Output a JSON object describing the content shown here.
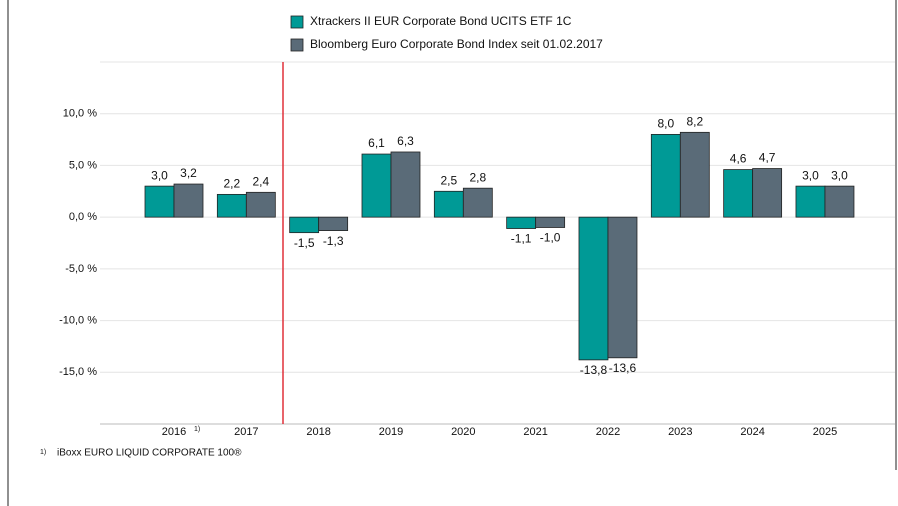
{
  "chart_data": {
    "type": "bar",
    "categories": [
      "2016",
      "2017",
      "2018",
      "2019",
      "2020",
      "2021",
      "2022",
      "2023",
      "2024",
      "2025"
    ],
    "category_note": "1)",
    "series": [
      {
        "name": "Xtrackers II EUR Corporate Bond UCITS ETF 1C",
        "color": "#009a96",
        "values": [
          3.0,
          2.2,
          -1.5,
          6.1,
          2.5,
          -1.1,
          -13.8,
          8.0,
          4.6,
          3.0
        ],
        "value_labels": [
          "3,0",
          "2,2",
          "-1,5",
          "6,1",
          "2,5",
          "-1,1",
          "-13,8",
          "8,0",
          "4,6",
          "3,0"
        ]
      },
      {
        "name": "Bloomberg Euro Corporate Bond Index seit 01.02.2017",
        "color": "#5a6b78",
        "values": [
          3.2,
          2.4,
          -1.3,
          6.3,
          2.8,
          -1.0,
          -13.6,
          8.2,
          4.7,
          3.0
        ],
        "value_labels": [
          "3,2",
          "2,4",
          "-1,3",
          "6,3",
          "2,8",
          "-1,0",
          "-13,6",
          "8,2",
          "4,7",
          "3,0"
        ]
      }
    ],
    "ylim": [
      -20,
      15
    ],
    "yticks": [
      {
        "value": -15,
        "label": "-15,0 %"
      },
      {
        "value": -10,
        "label": "-10,0 %"
      },
      {
        "value": -5,
        "label": "-5,0 %"
      },
      {
        "value": 0,
        "label": "0,0 %"
      },
      {
        "value": 5,
        "label": "5,0 %"
      },
      {
        "value": 10,
        "label": "10,0 %"
      }
    ],
    "grid": true,
    "footnote": {
      "marker": "1)",
      "text": "iBoxx EURO LIQUID CORPORATE 100®"
    }
  }
}
